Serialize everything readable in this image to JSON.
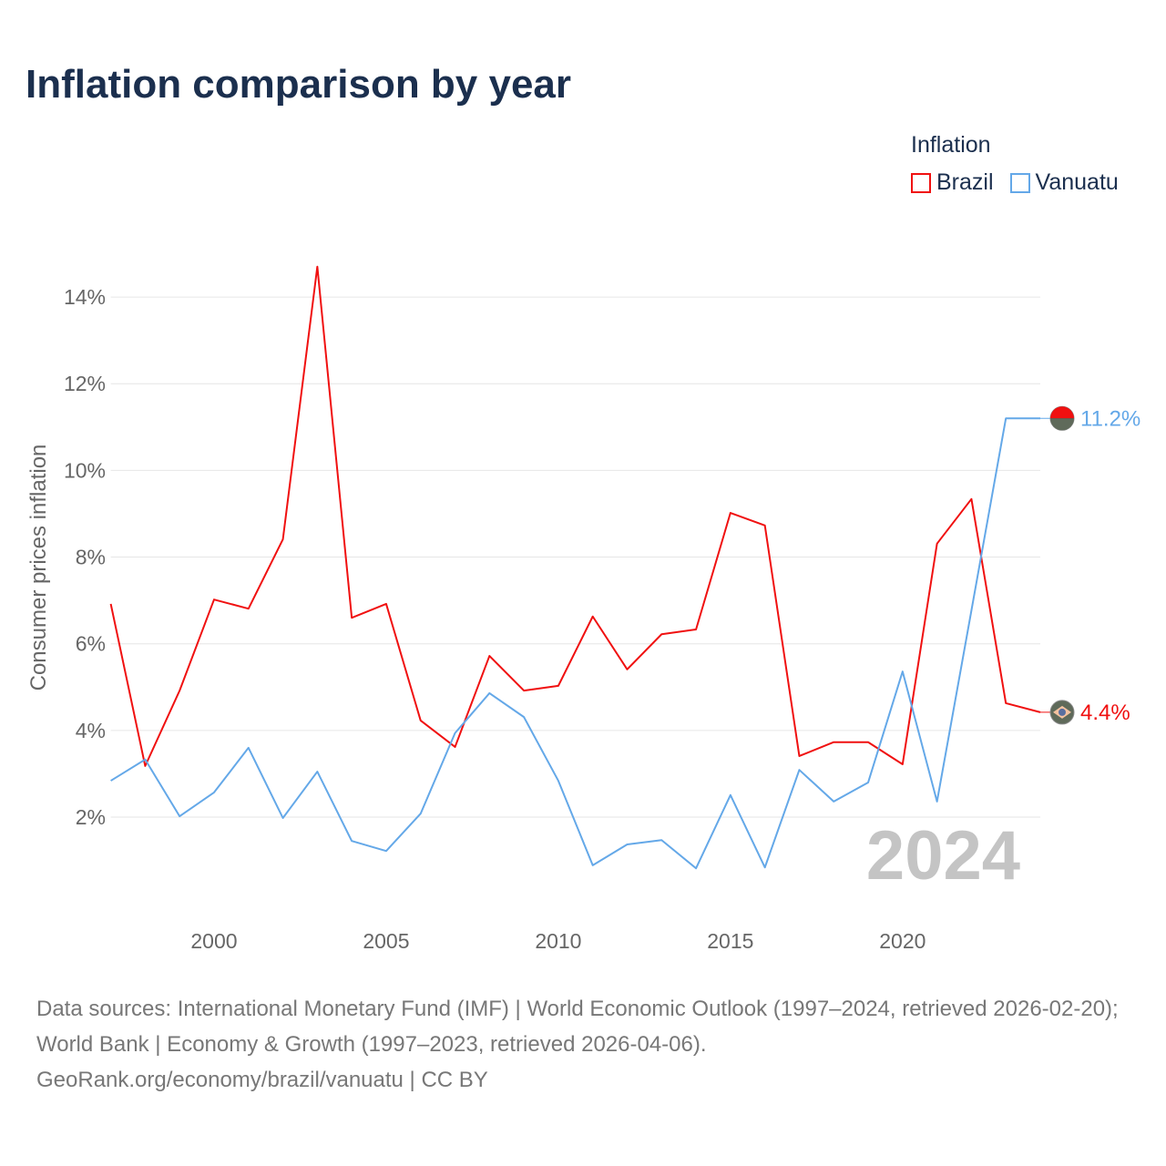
{
  "title": "Inflation comparison by year",
  "colors": {
    "brazil": "#f01010",
    "vanuatu": "#64a8e8",
    "grid": "#e6e6e6",
    "axis_text": "#666666",
    "watermark": "#c4c4c4"
  },
  "chart_data": {
    "type": "line",
    "title": "Inflation comparison by year",
    "xlabel": "",
    "ylabel": "Consumer prices inflation",
    "legend_title": "Inflation",
    "legend_position": "top-right",
    "grid": true,
    "xlim": [
      1997,
      2024
    ],
    "ylim": [
      0,
      15
    ],
    "x_ticks": [
      2000,
      2005,
      2010,
      2015,
      2020
    ],
    "y_ticks": [
      2,
      4,
      6,
      8,
      10,
      12,
      14
    ],
    "y_tick_labels": [
      "2%",
      "4%",
      "6%",
      "8%",
      "10%",
      "12%",
      "14%"
    ],
    "watermark_year": "2024",
    "x": [
      1997,
      1998,
      1999,
      2000,
      2001,
      2002,
      2003,
      2004,
      2005,
      2006,
      2007,
      2008,
      2009,
      2010,
      2011,
      2012,
      2013,
      2014,
      2015,
      2016,
      2017,
      2018,
      2019,
      2020,
      2021,
      2022,
      2023,
      2024
    ],
    "series": [
      {
        "name": "Brazil",
        "key": "brazil",
        "end_label": "4.4%",
        "values": [
          6.92,
          3.18,
          4.92,
          7.02,
          6.81,
          8.41,
          14.7,
          6.6,
          6.92,
          4.23,
          3.62,
          5.72,
          4.92,
          5.03,
          6.63,
          5.41,
          6.22,
          6.33,
          9.02,
          8.73,
          3.41,
          3.73,
          3.73,
          3.22,
          8.31,
          9.34,
          4.63,
          4.42
        ]
      },
      {
        "name": "Vanuatu",
        "key": "vanuatu",
        "end_label": "11.2%",
        "values": [
          2.84,
          3.33,
          2.02,
          2.57,
          3.6,
          1.98,
          3.05,
          1.45,
          1.22,
          2.08,
          3.94,
          4.86,
          4.31,
          2.84,
          0.89,
          1.37,
          1.47,
          0.82,
          2.51,
          0.84,
          3.09,
          2.36,
          2.8,
          5.36,
          2.36,
          6.77,
          11.2,
          11.2
        ]
      }
    ]
  },
  "source_lines": [
    "Data sources: International Monetary Fund (IMF) | World Economic Outlook (1997–2024, retrieved 2026-02-20); World Bank | Economy & Growth (1997–2023, retrieved 2026-04-06).",
    "GeoRank.org/economy/brazil/vanuatu | CC BY"
  ]
}
